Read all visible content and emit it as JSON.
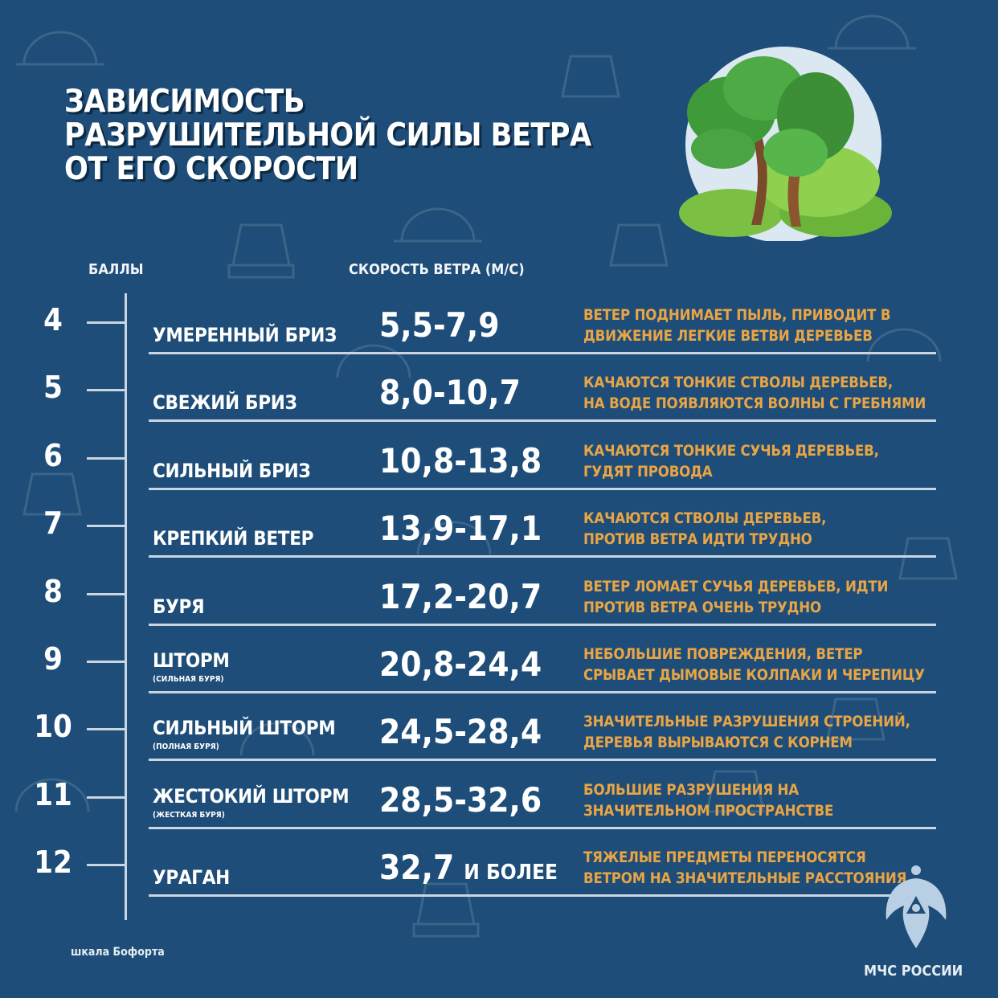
{
  "title": [
    "ЗАВИСИМОСТЬ",
    "РАЗРУШИТЕЛЬНОЙ СИЛЫ ВЕТРА",
    "ОТ ЕГО СКОРОСТИ"
  ],
  "headers": {
    "points": "БАЛЛЫ",
    "speed": "СКОРОСТЬ ВЕТРА (М/С)"
  },
  "rows": [
    {
      "points": "4",
      "name": "УМЕРЕННЫЙ БРИЗ",
      "sub": "",
      "speed": "5,5-7,9",
      "suffix": "",
      "desc": [
        "ВЕТЕР ПОДНИМАЕТ ПЫЛЬ, ПРИВОДИТ В",
        "ДВИЖЕНИЕ ЛЕГКИЕ ВЕТВИ ДЕРЕВЬЕВ"
      ]
    },
    {
      "points": "5",
      "name": "СВЕЖИЙ БРИЗ",
      "sub": "",
      "speed": "8,0-10,7",
      "suffix": "",
      "desc": [
        "КАЧАЮТСЯ ТОНКИЕ СТВОЛЫ ДЕРЕВЬЕВ,",
        "НА ВОДЕ ПОЯВЛЯЮТСЯ ВОЛНЫ С ГРЕБНЯМИ"
      ]
    },
    {
      "points": "6",
      "name": "СИЛЬНЫЙ БРИЗ",
      "sub": "",
      "speed": "10,8-13,8",
      "suffix": "",
      "desc": [
        "КАЧАЮТСЯ ТОНКИЕ СУЧЬЯ ДЕРЕВЬЕВ,",
        "ГУДЯТ ПРОВОДА"
      ]
    },
    {
      "points": "7",
      "name": "КРЕПКИЙ ВЕТЕР",
      "sub": "",
      "speed": "13,9-17,1",
      "suffix": "",
      "desc": [
        "КАЧАЮТСЯ СТВОЛЫ ДЕРЕВЬЕВ,",
        "ПРОТИВ ВЕТРА ИДТИ ТРУДНО"
      ]
    },
    {
      "points": "8",
      "name": "БУРЯ",
      "sub": "",
      "speed": "17,2-20,7",
      "suffix": "",
      "desc": [
        "ВЕТЕР ЛОМАЕТ СУЧЬЯ ДЕРЕВЬЕВ, ИДТИ",
        "ПРОТИВ ВЕТРА ОЧЕНЬ ТРУДНО"
      ]
    },
    {
      "points": "9",
      "name": "ШТОРМ",
      "sub": "(СИЛЬНАЯ БУРЯ)",
      "speed": "20,8-24,4",
      "suffix": "",
      "desc": [
        "НЕБОЛЬШИЕ ПОВРЕЖДЕНИЯ, ВЕТЕР",
        "СРЫВАЕТ ДЫМОВЫЕ КОЛПАКИ И ЧЕРЕПИЦУ"
      ]
    },
    {
      "points": "10",
      "name": "СИЛЬНЫЙ ШТОРМ",
      "sub": "(ПОЛНАЯ БУРЯ)",
      "speed": "24,5-28,4",
      "suffix": "",
      "desc": [
        "ЗНАЧИТЕЛЬНЫЕ РАЗРУШЕНИЯ СТРОЕНИЙ,",
        "ДЕРЕВЬЯ ВЫРЫВАЮТСЯ С КОРНЕМ"
      ]
    },
    {
      "points": "11",
      "name": "ЖЕСТОКИЙ ШТОРМ",
      "sub": "(ЖЕСТКАЯ БУРЯ)",
      "speed": "28,5-32,6",
      "suffix": "",
      "desc": [
        "БОЛЬШИЕ РАЗРУШЕНИЯ НА",
        "ЗНАЧИТЕЛЬНОМ ПРОСТРАНСТВЕ"
      ]
    },
    {
      "points": "12",
      "name": "УРАГАН",
      "sub": "",
      "speed": "32,7",
      "suffix": "И БОЛЕЕ",
      "desc": [
        "ТЯЖЕЛЫЕ ПРЕДМЕТЫ ПЕРЕНОСЯТСЯ",
        "ВЕТРОМ НА ЗНАЧИТЕЛЬНЫЕ РАССТОЯНИЯ"
      ]
    }
  ],
  "footer": {
    "source": "шкала Бофорта",
    "logo_text": "МЧС РОССИИ"
  },
  "colors": {
    "background": "#1d4d78",
    "accent": "#e9a545",
    "text": "#ffffff"
  }
}
